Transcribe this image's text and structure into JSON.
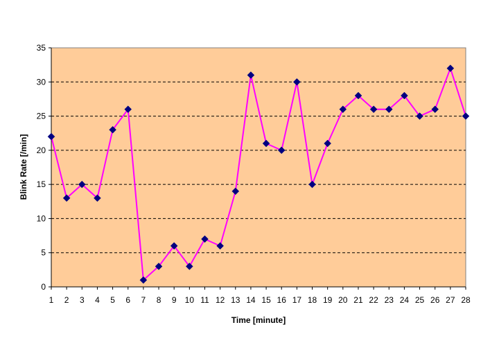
{
  "chart_data": {
    "type": "line",
    "title": "",
    "xlabel": "Time [minute]",
    "ylabel": "Blink Rate [/min]",
    "x": [
      1,
      2,
      3,
      4,
      5,
      6,
      7,
      8,
      9,
      10,
      11,
      12,
      13,
      14,
      15,
      16,
      17,
      18,
      19,
      20,
      21,
      22,
      23,
      24,
      25,
      26,
      27,
      28
    ],
    "series": [
      {
        "values": [
          22,
          13,
          15,
          13,
          23,
          26,
          1,
          3,
          6,
          3,
          7,
          6,
          14,
          31,
          21,
          20,
          30,
          15,
          21,
          26,
          28,
          26,
          26,
          28,
          25,
          26,
          32,
          25
        ]
      }
    ],
    "ylim": [
      0,
      35
    ],
    "yticks": [
      0,
      5,
      10,
      15,
      20,
      25,
      30,
      35
    ],
    "grid": "horizontal dashed",
    "legend": "none",
    "colors": {
      "plot_background": "#FFCC99",
      "line": "#FF00FF",
      "marker": "#000080",
      "grid": "#000000"
    }
  }
}
